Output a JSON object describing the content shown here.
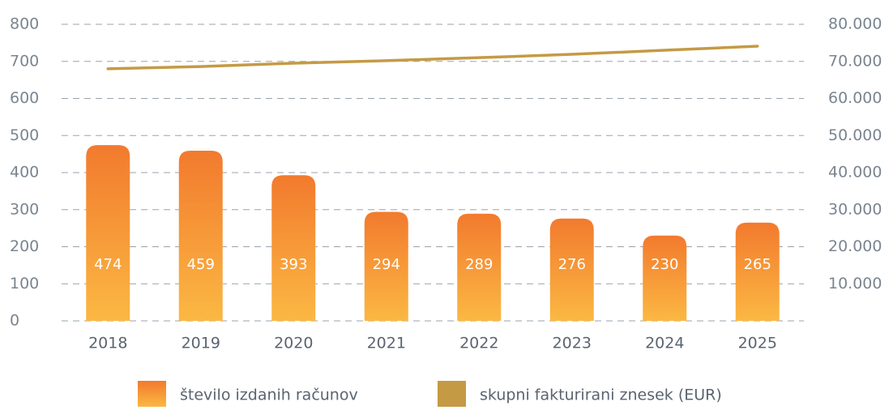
{
  "chart_data": {
    "type": "bar",
    "categories": [
      "2018",
      "2019",
      "2020",
      "2021",
      "2022",
      "2023",
      "2024",
      "2025"
    ],
    "series": [
      {
        "name": "število izdanih računov",
        "color": "#f27a2e",
        "values": [
          474,
          459,
          393,
          294,
          289,
          276,
          230,
          265
        ]
      },
      {
        "name": "skupni fakturirani znesek (EUR)",
        "color": "#c49a45",
        "axis": "y2",
        "type": "line",
        "values": [
          68000,
          68600,
          69500,
          70200,
          71000,
          71900,
          73000,
          74100
        ]
      }
    ],
    "ylim": [
      0,
      800
    ],
    "yticks": [
      0,
      100,
      200,
      300,
      400,
      500,
      600,
      700,
      800
    ],
    "y2lim": [
      0,
      80000
    ],
    "y2ticks": [
      {
        "value": 10000,
        "label": "10.000"
      },
      {
        "value": 20000,
        "label": "20.000"
      },
      {
        "value": 30000,
        "label": "30.000"
      },
      {
        "value": 40000,
        "label": "40.000"
      },
      {
        "value": 50000,
        "label": "50.000"
      },
      {
        "value": 60000,
        "label": "60.000"
      },
      {
        "value": 70000,
        "label": "70.000"
      },
      {
        "value": 80000,
        "label": "80.000"
      }
    ],
    "grid": true,
    "legend": "bottom"
  }
}
